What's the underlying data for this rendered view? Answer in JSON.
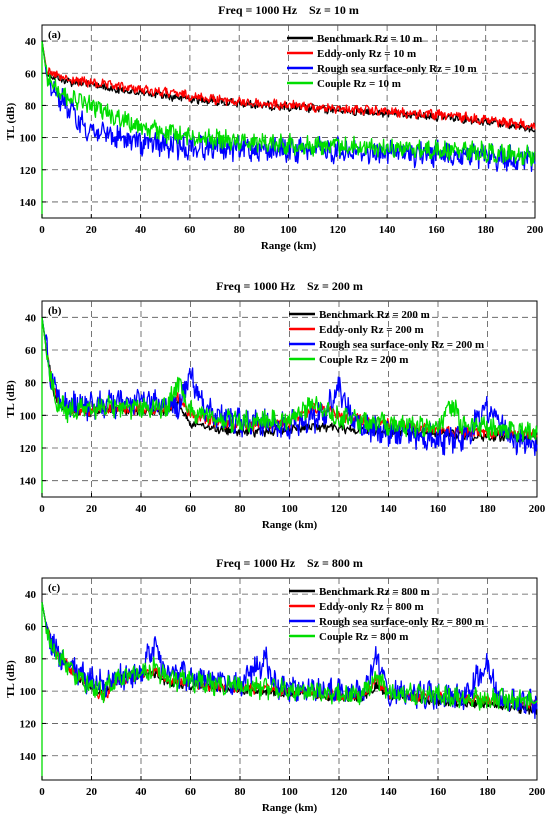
{
  "chart_data": [
    {
      "type": "line",
      "panel_label": "(a)",
      "title": "Freq = 1000 Hz    Sz = 10 m",
      "xlabel": "Range (km)",
      "ylabel": "TL (dB)",
      "xlim": [
        0,
        200
      ],
      "ylim": [
        30,
        150
      ],
      "y_reversed": true,
      "xticks": [
        0,
        20,
        40,
        60,
        80,
        100,
        120,
        140,
        160,
        180,
        200
      ],
      "yticks": [
        40,
        60,
        80,
        100,
        120,
        140
      ],
      "grid": true,
      "legend_position": "top-right",
      "series": [
        {
          "name": "Benchmark Rz = 10 m",
          "color": "#000000",
          "x": [
            0,
            2,
            5,
            10,
            20,
            30,
            40,
            50,
            60,
            70,
            80,
            90,
            100,
            110,
            120,
            130,
            140,
            150,
            160,
            170,
            180,
            190,
            200
          ],
          "y": [
            40,
            60,
            62,
            65,
            67,
            70,
            72,
            74,
            76,
            77,
            79,
            80,
            81,
            82,
            83,
            84,
            85,
            86,
            87,
            88,
            90,
            92,
            95
          ]
        },
        {
          "name": "Eddy-only Rz = 10 m",
          "color": "#ff0000",
          "x": [
            0,
            2,
            5,
            10,
            20,
            30,
            40,
            50,
            60,
            70,
            80,
            90,
            100,
            110,
            120,
            130,
            140,
            150,
            160,
            170,
            180,
            190,
            200
          ],
          "y": [
            40,
            59,
            61,
            64,
            66,
            68,
            70,
            72,
            74,
            76,
            78,
            79,
            80,
            81,
            82,
            83,
            84,
            85,
            86,
            87,
            89,
            91,
            93
          ]
        },
        {
          "name": "Rough sea surface-only Rz = 10 m",
          "color": "#0000ff",
          "x": [
            0,
            2,
            5,
            10,
            15,
            20,
            30,
            40,
            50,
            60,
            70,
            80,
            90,
            100,
            110,
            120,
            130,
            140,
            150,
            160,
            170,
            180,
            190,
            200
          ],
          "y": [
            40,
            62,
            70,
            80,
            90,
            95,
            100,
            103,
            105,
            106,
            106,
            107,
            107,
            108,
            108,
            108,
            109,
            109,
            110,
            110,
            111,
            112,
            113,
            114
          ]
        },
        {
          "name": "Couple Rz = 10 m",
          "color": "#00dd00",
          "x": [
            0,
            2,
            5,
            10,
            20,
            30,
            40,
            50,
            60,
            70,
            80,
            90,
            100,
            110,
            120,
            130,
            140,
            150,
            160,
            170,
            180,
            190,
            200
          ],
          "y": [
            40,
            62,
            68,
            74,
            80,
            87,
            93,
            97,
            99,
            101,
            102,
            103,
            104,
            105,
            105,
            106,
            106,
            107,
            108,
            108,
            109,
            110,
            111
          ]
        }
      ]
    },
    {
      "type": "line",
      "panel_label": "(b)",
      "title": "Freq = 1000 Hz    Sz = 200 m",
      "xlabel": "Range (km)",
      "ylabel": "TL (dB)",
      "xlim": [
        0,
        200
      ],
      "ylim": [
        30,
        150
      ],
      "y_reversed": true,
      "xticks": [
        0,
        20,
        40,
        60,
        80,
        100,
        120,
        140,
        160,
        180,
        200
      ],
      "yticks": [
        40,
        60,
        80,
        100,
        120,
        140
      ],
      "grid": true,
      "legend_position": "top-right",
      "series": [
        {
          "name": "Benchmark Rz = 200 m",
          "color": "#000000",
          "x": [
            0,
            2,
            4,
            6,
            10,
            20,
            30,
            40,
            50,
            55,
            60,
            70,
            80,
            90,
            100,
            110,
            120,
            130,
            140,
            150,
            160,
            170,
            180,
            190,
            200
          ],
          "y": [
            40,
            62,
            80,
            92,
            97,
            98,
            96,
            97,
            98,
            92,
            105,
            108,
            110,
            110,
            108,
            107,
            108,
            109,
            110,
            110,
            111,
            112,
            113,
            113,
            114
          ]
        },
        {
          "name": "Eddy-only Rz = 200 m",
          "color": "#ff0000",
          "x": [
            0,
            2,
            4,
            6,
            10,
            20,
            30,
            40,
            50,
            55,
            60,
            70,
            80,
            90,
            100,
            110,
            120,
            130,
            140,
            150,
            160,
            170,
            180,
            190,
            200
          ],
          "y": [
            40,
            62,
            80,
            90,
            96,
            97,
            96,
            96,
            97,
            88,
            100,
            104,
            106,
            106,
            104,
            95,
            100,
            103,
            105,
            107,
            109,
            110,
            111,
            111,
            112
          ]
        },
        {
          "name": "Rough sea surface-only Rz = 200 m",
          "color": "#0000ff",
          "x": [
            0,
            2,
            4,
            6,
            10,
            20,
            30,
            40,
            50,
            55,
            60,
            65,
            70,
            80,
            90,
            100,
            110,
            115,
            120,
            125,
            130,
            140,
            150,
            160,
            170,
            180,
            190,
            200
          ],
          "y": [
            40,
            60,
            78,
            88,
            94,
            94,
            93,
            92,
            93,
            95,
            76,
            95,
            100,
            104,
            105,
            106,
            102,
            96,
            84,
            100,
            108,
            110,
            112,
            115,
            114,
            96,
            115,
            116
          ]
        },
        {
          "name": "Couple Rz = 200 m",
          "color": "#00dd00",
          "x": [
            0,
            2,
            4,
            6,
            10,
            20,
            30,
            40,
            50,
            55,
            60,
            70,
            80,
            90,
            100,
            110,
            120,
            130,
            140,
            150,
            160,
            165,
            170,
            180,
            190,
            200
          ],
          "y": [
            40,
            62,
            80,
            92,
            97,
            96,
            95,
            95,
            96,
            80,
            98,
            102,
            104,
            104,
            103,
            92,
            102,
            104,
            105,
            106,
            108,
            92,
            106,
            108,
            110,
            111
          ]
        }
      ]
    },
    {
      "type": "line",
      "panel_label": "(c)",
      "title": "Freq = 1000 Hz    Sz = 800 m",
      "xlabel": "Range (km)",
      "ylabel": "TL (dB)",
      "xlim": [
        0,
        200
      ],
      "ylim": [
        30,
        155
      ],
      "y_reversed": true,
      "xticks": [
        0,
        20,
        40,
        60,
        80,
        100,
        120,
        140,
        160,
        180,
        200
      ],
      "yticks": [
        40,
        60,
        80,
        100,
        120,
        140
      ],
      "grid": true,
      "legend_position": "top-right",
      "series": [
        {
          "name": "Benchmark Rz = 800 m",
          "color": "#000000",
          "x": [
            0,
            2,
            5,
            10,
            15,
            20,
            25,
            30,
            40,
            45,
            50,
            60,
            70,
            80,
            90,
            100,
            110,
            120,
            130,
            135,
            140,
            150,
            160,
            170,
            180,
            190,
            200
          ],
          "y": [
            45,
            62,
            75,
            84,
            92,
            97,
            102,
            92,
            90,
            88,
            94,
            96,
            98,
            99,
            100,
            101,
            102,
            104,
            104,
            96,
            103,
            104,
            106,
            107,
            108,
            110,
            112
          ]
        },
        {
          "name": "Eddy-only Rz = 800 m",
          "color": "#ff0000",
          "x": [
            0,
            2,
            5,
            10,
            15,
            20,
            25,
            30,
            40,
            45,
            50,
            60,
            70,
            80,
            90,
            100,
            110,
            120,
            130,
            135,
            140,
            150,
            160,
            170,
            180,
            190,
            200
          ],
          "y": [
            45,
            62,
            75,
            84,
            92,
            97,
            104,
            93,
            90,
            87,
            93,
            95,
            97,
            98,
            99,
            100,
            101,
            103,
            103,
            93,
            102,
            103,
            104,
            105,
            106,
            107,
            108
          ]
        },
        {
          "name": "Rough sea surface-only Rz = 800 m",
          "color": "#0000ff",
          "x": [
            0,
            2,
            5,
            10,
            15,
            20,
            25,
            30,
            40,
            45,
            50,
            60,
            70,
            80,
            90,
            95,
            100,
            110,
            120,
            130,
            135,
            140,
            150,
            160,
            170,
            180,
            185,
            190,
            200
          ],
          "y": [
            45,
            62,
            74,
            83,
            90,
            94,
            96,
            92,
            88,
            72,
            88,
            92,
            94,
            96,
            80,
            97,
            98,
            99,
            100,
            101,
            78,
            100,
            101,
            103,
            104,
            84,
            104,
            106,
            108
          ]
        },
        {
          "name": "Couple Rz = 800 m",
          "color": "#00dd00",
          "x": [
            0,
            2,
            5,
            10,
            15,
            20,
            25,
            30,
            40,
            45,
            50,
            60,
            70,
            80,
            90,
            100,
            110,
            120,
            130,
            135,
            140,
            150,
            160,
            170,
            180,
            190,
            200
          ],
          "y": [
            45,
            62,
            75,
            84,
            92,
            96,
            100,
            92,
            89,
            86,
            92,
            94,
            96,
            97,
            98,
            99,
            100,
            102,
            102,
            90,
            101,
            102,
            103,
            104,
            105,
            106,
            107
          ]
        }
      ]
    }
  ]
}
